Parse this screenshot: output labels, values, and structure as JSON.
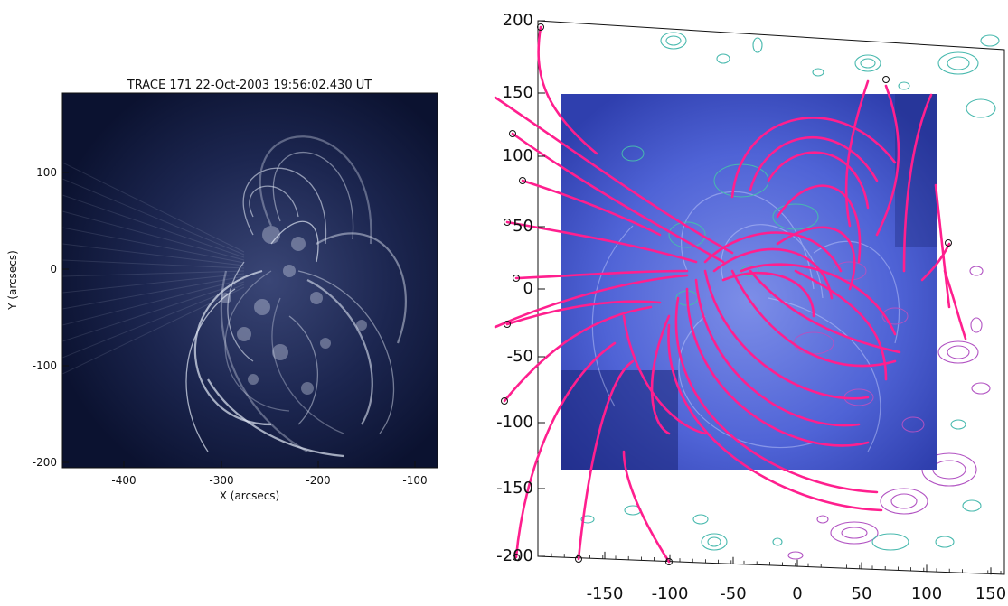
{
  "left_panel": {
    "title": "TRACE 171 22-Oct-2003 19:56:02.430 UT",
    "xlabel": "X (arcsecs)",
    "ylabel": "Y (arcsecs)",
    "x_ticks": [
      "-400",
      "-300",
      "-200",
      "-100"
    ],
    "y_ticks": [
      "100",
      "0",
      "-100",
      "-200"
    ],
    "colors": {
      "background": "#0e1634",
      "loops": "#dfe6f3"
    }
  },
  "right_panel": {
    "x_ticks": [
      "-150",
      "-100",
      "-50",
      "0",
      "50",
      "100",
      "150"
    ],
    "y_ticks": [
      "200",
      "150",
      "100",
      "50",
      "0",
      "-50",
      "-100",
      "-150",
      "-200"
    ],
    "colors": {
      "image_background": "#4457cf",
      "field_lines": "#ff1f8e",
      "positive_contours": "#48b9ae",
      "negative_contours": "#b152c2"
    }
  }
}
